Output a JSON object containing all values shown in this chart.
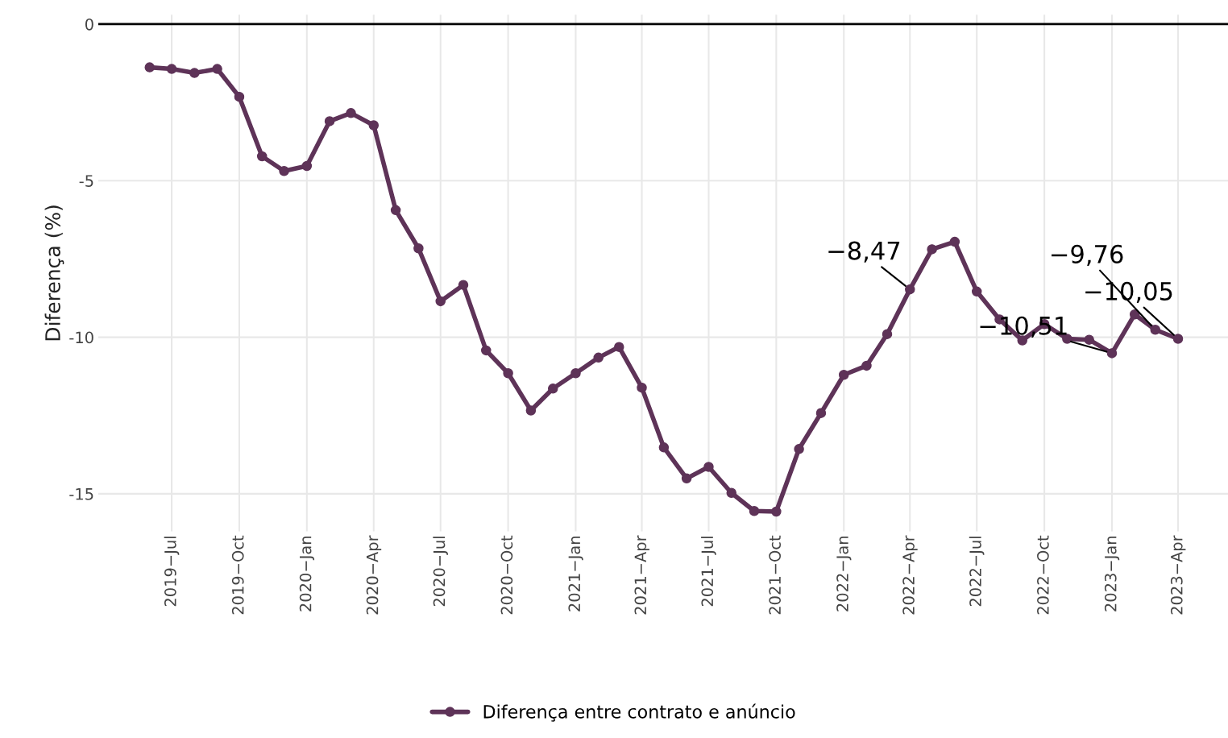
{
  "chart_data": {
    "type": "line",
    "ylabel": "Diferença (%)",
    "x": [
      "2019-06",
      "2019-07",
      "2019-08",
      "2019-09",
      "2019-10",
      "2019-11",
      "2019-12",
      "2020-01",
      "2020-02",
      "2020-03",
      "2020-04",
      "2020-05",
      "2020-06",
      "2020-07",
      "2020-08",
      "2020-09",
      "2020-10",
      "2020-11",
      "2020-12",
      "2021-01",
      "2021-02",
      "2021-03",
      "2021-04",
      "2021-05",
      "2021-06",
      "2021-07",
      "2021-08",
      "2021-09",
      "2021-10",
      "2021-11",
      "2021-12",
      "2022-01",
      "2022-02",
      "2022-03",
      "2022-04",
      "2022-05",
      "2022-06",
      "2022-07",
      "2022-08",
      "2022-09",
      "2022-10",
      "2022-11",
      "2022-12",
      "2023-01",
      "2023-02",
      "2023-03",
      "2023-04"
    ],
    "series": [
      {
        "name": "Diferença entre contrato e anúncio",
        "color": "#5e3358",
        "values": [
          -1.38,
          -1.43,
          -1.56,
          -1.43,
          -2.32,
          -4.22,
          -4.69,
          -4.53,
          -3.1,
          -2.84,
          -3.23,
          -5.94,
          -7.16,
          -8.85,
          -8.33,
          -10.42,
          -11.15,
          -12.34,
          -11.64,
          -11.15,
          -10.65,
          -10.31,
          -11.61,
          -13.52,
          -14.51,
          -14.14,
          -14.97,
          -15.55,
          -15.57,
          -13.57,
          -12.42,
          -11.2,
          -10.91,
          -9.9,
          -8.47,
          -7.19,
          -6.95,
          -8.54,
          -9.43,
          -10.1,
          -9.58,
          -10.05,
          -10.08,
          -10.51,
          -9.27,
          -9.76,
          -10.05
        ]
      }
    ],
    "xlim": [
      "2019-03-23",
      "2023-06-08"
    ],
    "xticks": [
      {
        "value": "2019-07",
        "label": "2019−Jul"
      },
      {
        "value": "2019-10",
        "label": "2019−Oct"
      },
      {
        "value": "2020-01",
        "label": "2020−Jan"
      },
      {
        "value": "2020-04",
        "label": "2020−Apr"
      },
      {
        "value": "2020-07",
        "label": "2020−Jul"
      },
      {
        "value": "2020-10",
        "label": "2020−Oct"
      },
      {
        "value": "2021-01",
        "label": "2021−Jan"
      },
      {
        "value": "2021-04",
        "label": "2021−Apr"
      },
      {
        "value": "2021-07",
        "label": "2021−Jul"
      },
      {
        "value": "2021-10",
        "label": "2021−Oct"
      },
      {
        "value": "2022-01",
        "label": "2022−Jan"
      },
      {
        "value": "2022-04",
        "label": "2022−Apr"
      },
      {
        "value": "2022-07",
        "label": "2022−Jul"
      },
      {
        "value": "2022-10",
        "label": "2022−Oct"
      },
      {
        "value": "2023-01",
        "label": "2023−Jan"
      },
      {
        "value": "2023-04",
        "label": "2023−Apr"
      }
    ],
    "ylim": [
      -16.2,
      0.3
    ],
    "yticks": [
      {
        "value": -15,
        "label": "-15"
      },
      {
        "value": -10,
        "label": "-10"
      },
      {
        "value": -5,
        "label": "-5"
      },
      0
    ],
    "ref_lines": [
      {
        "axis": "y",
        "value": 0,
        "color": "#000000",
        "line_style": "solid"
      }
    ],
    "annotations": [
      {
        "text": "−8,47",
        "x": "2022-04",
        "y": -8.47
      },
      {
        "text": "−10,51",
        "x": "2023-01",
        "y": -10.51
      },
      {
        "text": "−9,76",
        "x": "2023-03",
        "y": -9.76
      },
      {
        "text": "−10,05",
        "x": "2023-04",
        "y": -10.05
      }
    ],
    "grid": true,
    "legend": "bottom",
    "marker": "circle",
    "line_style": "solid"
  }
}
